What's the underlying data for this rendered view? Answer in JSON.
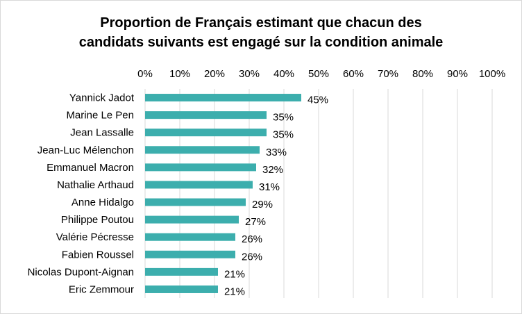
{
  "chart_data": {
    "type": "bar",
    "orientation": "horizontal",
    "title_lines": [
      "Proportion de Français estimant que chacun des",
      "candidats suivants est engagé sur la condition animale"
    ],
    "categories": [
      "Yannick Jadot",
      "Marine Le Pen",
      "Jean Lassalle",
      "Jean-Luc Mélenchon",
      "Emmanuel Macron",
      "Nathalie Arthaud",
      "Anne Hidalgo",
      "Philippe Poutou",
      "Valérie Pécresse",
      "Fabien Roussel",
      "Nicolas Dupont-Aignan",
      "Eric Zemmour"
    ],
    "values": [
      45,
      35,
      35,
      33,
      32,
      31,
      29,
      27,
      26,
      26,
      21,
      21
    ],
    "value_labels": [
      "45%",
      "35%",
      "35%",
      "33%",
      "32%",
      "31%",
      "29%",
      "27%",
      "26%",
      "26%",
      "21%",
      "21%"
    ],
    "xlim": [
      0,
      100
    ],
    "x_ticks": [
      "0%",
      "10%",
      "20%",
      "30%",
      "40%",
      "50%",
      "60%",
      "70%",
      "80%",
      "90%",
      "100%"
    ],
    "x_axis_position": "top",
    "grid": true,
    "legend": "none",
    "bar_color": "#3caead",
    "grid_color": "#d9d9d9"
  }
}
